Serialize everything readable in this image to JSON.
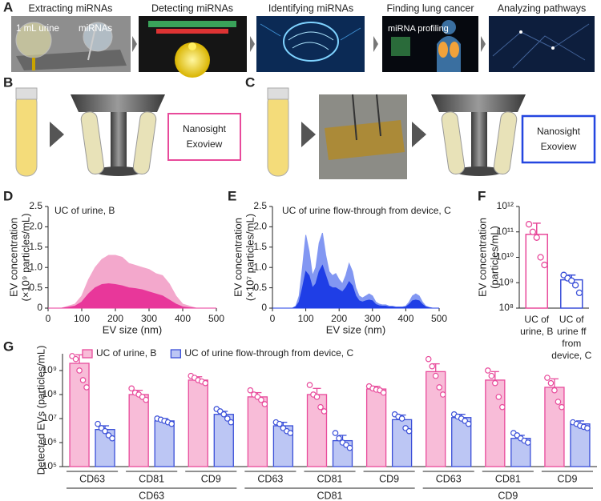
{
  "panel_labels": [
    "A",
    "B",
    "C",
    "D",
    "E",
    "F",
    "G"
  ],
  "panel_a": {
    "steps": [
      "Extracting miRNAs",
      "Detecting miRNAs",
      "Identifying miRNAs",
      "Finding lung cancer",
      "Analyzing pathways"
    ],
    "urine": "1 mL urine",
    "mirnas": "miRNAs",
    "profiling": "miRNA profiling"
  },
  "panel_b": {
    "box": [
      "Nanosight",
      "Exoview"
    ]
  },
  "panel_c": {
    "box": [
      "Nanosight",
      "Exoview"
    ]
  },
  "chart_data": [
    {
      "type": "area",
      "title": "UC of urine, B",
      "xlabel": "EV size (nm)",
      "ylabel": [
        "EV concentration",
        "(×10⁹ particles/mL)"
      ],
      "x": [
        0,
        20,
        40,
        60,
        80,
        100,
        120,
        140,
        160,
        180,
        200,
        220,
        240,
        260,
        280,
        300,
        320,
        340,
        360,
        380,
        400,
        420,
        440,
        460,
        480,
        500
      ],
      "series": [
        {
          "color": "#f29ac4",
          "values": [
            0,
            0,
            0,
            0.05,
            0.1,
            0.3,
            0.7,
            1.0,
            1.2,
            1.3,
            1.3,
            1.25,
            1.1,
            1.05,
            1.0,
            0.95,
            0.85,
            0.8,
            0.6,
            0.3,
            0.1,
            0.05,
            0,
            0,
            0,
            0
          ]
        },
        {
          "color": "#e8379a",
          "values": [
            0,
            0,
            0,
            0.02,
            0.05,
            0.15,
            0.35,
            0.5,
            0.58,
            0.6,
            0.58,
            0.55,
            0.5,
            0.48,
            0.45,
            0.4,
            0.35,
            0.3,
            0.2,
            0.1,
            0.03,
            0.01,
            0,
            0,
            0,
            0
          ]
        }
      ],
      "xlim": [
        0,
        500
      ],
      "xticks": [
        0,
        100,
        200,
        300,
        400,
        500
      ],
      "ylim": [
        0,
        2.5
      ],
      "yticks": [
        0,
        0.5,
        {
          "value": 1,
          "label": "1.0"
        },
        1.5,
        {
          "value": 2,
          "label": "2.0"
        },
        2.5
      ]
    },
    {
      "type": "area",
      "title": "UC of urine flow-through from device, C",
      "xlabel": "EV size (nm)",
      "ylabel": [
        "EV concentration",
        "(×10⁷ particles/mL)"
      ],
      "x": [
        0,
        10,
        20,
        30,
        40,
        50,
        60,
        70,
        80,
        90,
        100,
        110,
        120,
        130,
        140,
        150,
        160,
        170,
        180,
        190,
        200,
        210,
        220,
        230,
        240,
        250,
        260,
        270,
        280,
        290,
        300,
        310,
        320,
        330,
        340,
        350,
        360,
        370,
        380,
        390,
        400,
        410,
        420,
        430,
        440,
        450,
        460,
        470,
        480,
        490,
        500
      ],
      "series": [
        {
          "color": "#6d86f0",
          "values": [
            0,
            0,
            0,
            0,
            0,
            0,
            0,
            0.05,
            0.3,
            1.0,
            1.8,
            1.4,
            0.8,
            1.0,
            1.6,
            1.85,
            1.3,
            0.9,
            0.8,
            0.85,
            0.7,
            0.6,
            0.8,
            1.1,
            0.9,
            0.5,
            0.3,
            0.25,
            0.3,
            0.35,
            0.3,
            0.15,
            0.1,
            0.08,
            0.08,
            0.05,
            0.05,
            0.03,
            0.03,
            0.03,
            0.05,
            0.15,
            0.3,
            0.35,
            0.3,
            0.15,
            0.05,
            0.02,
            0,
            0,
            0
          ]
        },
        {
          "color": "#1f3ee6",
          "values": [
            0,
            0,
            0,
            0,
            0,
            0,
            0,
            0.03,
            0.15,
            0.5,
            0.9,
            0.8,
            0.5,
            0.6,
            0.9,
            1.05,
            0.8,
            0.55,
            0.5,
            0.5,
            0.45,
            0.4,
            0.5,
            0.65,
            0.55,
            0.3,
            0.18,
            0.15,
            0.18,
            0.2,
            0.18,
            0.09,
            0.06,
            0.05,
            0.05,
            0.03,
            0.03,
            0.02,
            0.02,
            0.02,
            0.03,
            0.09,
            0.18,
            0.2,
            0.18,
            0.09,
            0.03,
            0.01,
            0,
            0,
            0
          ]
        }
      ],
      "xlim": [
        0,
        500
      ],
      "xticks": [
        0,
        100,
        200,
        300,
        400,
        500
      ],
      "ylim": [
        0,
        2.5
      ],
      "yticks": [
        0,
        0.5,
        {
          "value": 1,
          "label": "1.0"
        },
        1.5,
        {
          "value": 2,
          "label": "2.0"
        },
        2.5
      ]
    },
    {
      "type": "bar",
      "log_scale": true,
      "ylabel": [
        "EV concentration",
        "(particles/mL)"
      ],
      "categories": [
        [
          "UC of",
          "urine, B"
        ],
        [
          "UC of",
          "urine ff",
          "from",
          "device, C"
        ]
      ],
      "series": [
        {
          "values": [
            80000000000.0,
            1300000000.0
          ],
          "errors": [
            140000000000.0,
            700000000.0
          ],
          "colors": [
            "#e84a9b",
            "#3a4fd8"
          ],
          "points": [
            [
              200000000000.0,
              100000000000.0,
              60000000000.0,
              10000000000.0,
              5000000000.0
            ],
            [
              2000000000.0,
              1500000000.0,
              1200000000.0,
              800000000.0,
              400000000.0
            ]
          ]
        }
      ],
      "fill": "#ffffff",
      "ylim": [
        100000000.0,
        1000000000000.0
      ],
      "yticks": [
        {
          "value": 100000000.0,
          "label": "10⁸"
        },
        {
          "value": 1000000000.0,
          "label": "10⁹"
        },
        {
          "value": 10000000000.0,
          "label": "10¹⁰"
        },
        {
          "value": 100000000000.0,
          "label": "10¹¹"
        },
        {
          "value": 1000000000000.0,
          "label": "10¹²"
        }
      ]
    },
    {
      "type": "grouped_bar",
      "log_scale": true,
      "ylabel": "Detected EVs (particles/mL)",
      "legend": "top-left",
      "categories": [
        "CD63",
        "CD81",
        "CD9",
        "CD63",
        "CD81",
        "CD9",
        "CD63",
        "CD81",
        "CD9"
      ],
      "group_labels": [
        "CD63",
        "CD81",
        "CD9"
      ],
      "series": [
        {
          "name": "UC of urine, B",
          "color": "#e84a9b",
          "fill": "#f8bcd8",
          "values": [
            2000000000.0,
            100000000.0,
            400000000.0,
            80000000.0,
            100000000.0,
            170000000.0,
            900000000.0,
            400000000.0,
            200000000.0
          ],
          "errors": [
            2500000000.0,
            50000000.0,
            150000000.0,
            40000000.0,
            80000000.0,
            50000000.0,
            1000000000.0,
            500000000.0,
            250000000.0
          ],
          "points": [
            [
              4000000000.0,
              3000000000.0,
              1000000000.0,
              400000000.0,
              200000000.0
            ],
            [
              180000000.0,
              120000000.0,
              100000000.0,
              80000000.0,
              60000000.0
            ],
            [
              600000000.0,
              500000000.0,
              400000000.0,
              350000000.0,
              300000000.0
            ],
            [
              150000000.0,
              100000000.0,
              80000000.0,
              60000000.0,
              40000000.0
            ],
            [
              250000000.0,
              100000000.0,
              80000000.0,
              30000000.0,
              20000000.0
            ],
            [
              220000000.0,
              180000000.0,
              160000000.0,
              150000000.0,
              120000000.0
            ],
            [
              3000000000.0,
              1500000000.0,
              600000000.0,
              200000000.0,
              100000000.0
            ],
            [
              1000000000.0,
              600000000.0,
              300000000.0,
              80000000.0,
              30000000.0
            ],
            [
              500000000.0,
              300000000.0,
              150000000.0,
              50000000.0,
              30000000.0
            ]
          ]
        },
        {
          "name": "UC of urine flow-through from device, C",
          "color": "#3a4fd8",
          "fill": "#bcc6f4",
          "values": [
            3500000.0,
            8000000.0,
            15000000.0,
            5000000.0,
            1200000.0,
            9000000.0,
            11000000.0,
            1500000.0,
            6000000.0
          ],
          "errors": [
            1500000.0,
            2000000.0,
            5000000.0,
            2000000.0,
            800000.0,
            5000000.0,
            4000000.0,
            500000.0,
            2000000.0
          ],
          "points": [
            [
              6000000.0,
              4000000.0,
              3000000.0,
              2000000.0,
              1500000.0
            ],
            [
              10000000.0,
              9000000.0,
              8000000.0,
              7000000.0,
              6000000.0
            ],
            [
              25000000.0,
              20000000.0,
              15000000.0,
              10000000.0,
              7000000.0
            ],
            [
              7000000.0,
              6000000.0,
              4000000.0,
              3000000.0,
              2500000.0
            ],
            [
              2500000.0,
              1500000.0,
              1000000.0,
              800000.0,
              600000.0
            ],
            [
              15000000.0,
              12000000.0,
              10000000.0,
              4000000.0,
              3000000.0
            ],
            [
              15000000.0,
              12000000.0,
              10000000.0,
              8000000.0,
              6000000.0
            ],
            [
              2500000.0,
              2000000.0,
              1500000.0,
              1200000.0,
              1000000.0
            ],
            [
              7000000.0,
              6000000.0,
              5000000.0,
              4500000.0,
              4000000.0
            ]
          ]
        }
      ],
      "ylim": [
        100000.0,
        5000000000.0
      ],
      "yticks": [
        {
          "value": 100000.0,
          "label": "10⁵"
        },
        {
          "value": 1000000.0,
          "label": "10⁶"
        },
        {
          "value": 10000000.0,
          "label": "10⁷"
        },
        {
          "value": 100000000.0,
          "label": "10⁸"
        },
        {
          "value": 1000000000.0,
          "label": "10⁹"
        }
      ]
    }
  ]
}
